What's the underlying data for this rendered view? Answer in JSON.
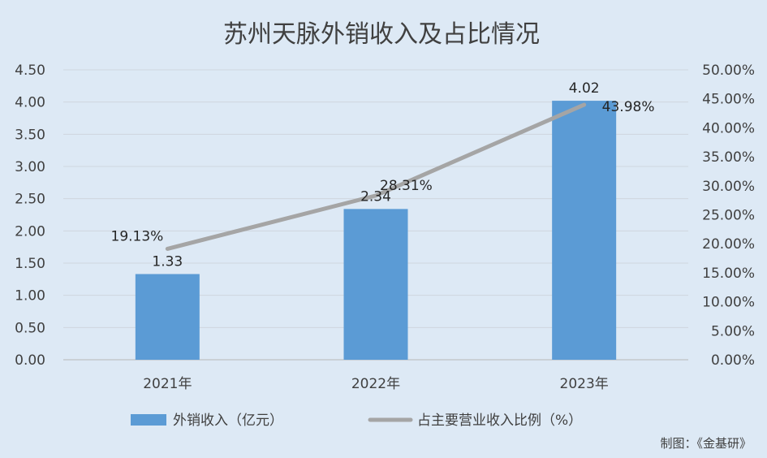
{
  "chart_data": {
    "type": "bar+line",
    "title": "苏州天脉外销收入及占比情况",
    "categories": [
      "2021年",
      "2022年",
      "2023年"
    ],
    "series": [
      {
        "name": "外销收入（亿元）",
        "type": "bar",
        "axis": "left",
        "values": [
          1.33,
          2.34,
          4.02
        ],
        "labels": [
          "1.33",
          "2.34",
          "4.02"
        ],
        "color": "#5b9bd5"
      },
      {
        "name": "占主要营业收入比例（%）",
        "type": "line",
        "axis": "right",
        "values": [
          19.13,
          28.31,
          43.98
        ],
        "labels": [
          "19.13%",
          "28.31%",
          "43.98%"
        ],
        "color": "#a5a5a5"
      }
    ],
    "y_left": {
      "min": 0,
      "max": 4.5,
      "step": 0.5,
      "ticks": [
        "0.00",
        "0.50",
        "1.00",
        "1.50",
        "2.00",
        "2.50",
        "3.00",
        "3.50",
        "4.00",
        "4.50"
      ]
    },
    "y_right": {
      "min": 0,
      "max": 50,
      "step": 5,
      "ticks": [
        "0.00%",
        "5.00%",
        "10.00%",
        "15.00%",
        "20.00%",
        "25.00%",
        "30.00%",
        "35.00%",
        "40.00%",
        "45.00%",
        "50.00%"
      ]
    },
    "grid": true,
    "legend_position": "bottom"
  },
  "credit": "制图：《金基研》"
}
